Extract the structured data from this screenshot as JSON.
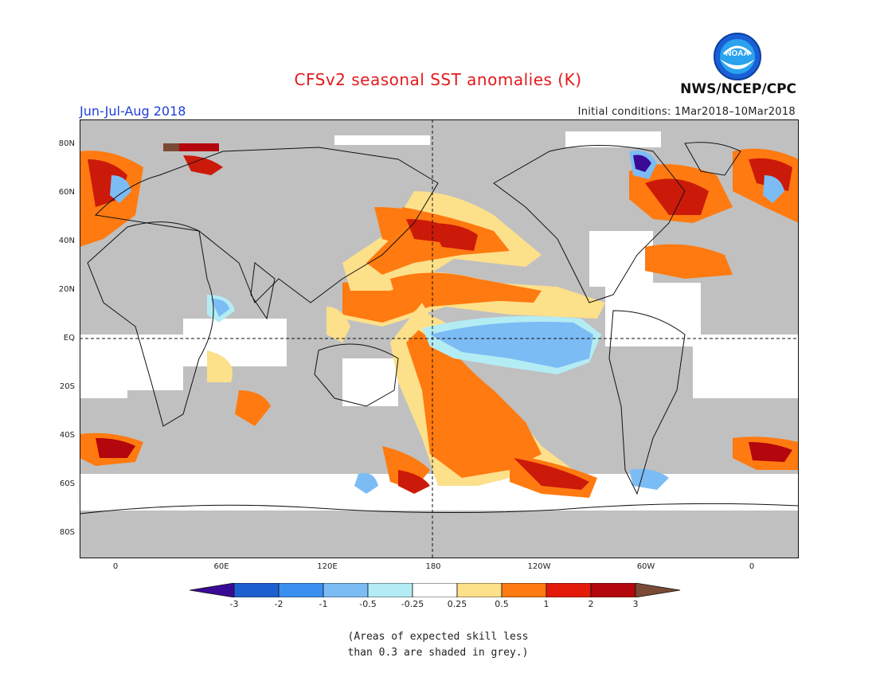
{
  "title": "CFSv2 seasonal SST anomalies (K)",
  "season": "Jun-Jul-Aug 2018",
  "initial_conditions": "Initial conditions: 1Mar2018–10Mar2018",
  "agency": "NWS/NCEP/CPC",
  "logo_text": "NOAA",
  "lat_labels": [
    "80N",
    "60N",
    "40N",
    "20N",
    "EQ",
    "20S",
    "40S",
    "60S",
    "80S"
  ],
  "lon_labels": [
    "0",
    "60E",
    "120E",
    "180",
    "120W",
    "60W",
    "0"
  ],
  "colorbar": {
    "tick_labels": [
      "-3",
      "-2",
      "-1",
      "-0.5",
      "-0.25",
      "0.25",
      "0.5",
      "1",
      "2",
      "3"
    ],
    "colors": [
      "#3a0a96",
      "#1e5fd0",
      "#3b8ff0",
      "#7bbcf5",
      "#b4ecf4",
      "#ffffff",
      "#fde08a",
      "#ff7a10",
      "#e31a0a",
      "#b3060d",
      "#7a4a36"
    ]
  },
  "skill_note": [
    "(Areas of expected skill less",
    "than 0.3 are shaded in grey.)"
  ],
  "colors": {
    "title": "#e31a1c",
    "season": "#1f3fd6",
    "grey_mask": "#c0c0c0"
  }
}
